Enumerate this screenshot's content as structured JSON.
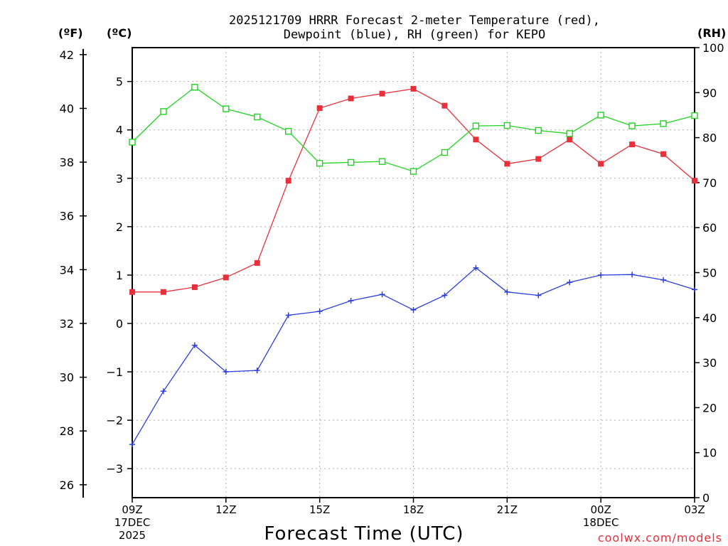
{
  "header": {
    "title_line1": "2025121709 HRRR Forecast 2-meter Temperature (red),",
    "title_line2": "Dewpoint (blue), RH (green) for KEPO",
    "unit_f": "(ºF)",
    "unit_c": "(ºC)",
    "unit_rh": "(RH)"
  },
  "footer": {
    "x_axis_title": "Forecast Time (UTC)",
    "credit": "coolwx.com/models"
  },
  "colors": {
    "temperature": "#e8303a",
    "dewpoint": "#2a3fe0",
    "rh": "#1ed41e"
  },
  "chart_data": {
    "type": "line",
    "x_hours": [
      0,
      1,
      2,
      3,
      4,
      5,
      6,
      7,
      8,
      9,
      10,
      11,
      12,
      13,
      14,
      15,
      16,
      17,
      18
    ],
    "x_ticks": [
      {
        "hour": 0,
        "lines": [
          "09Z",
          "17DEC",
          "2025"
        ]
      },
      {
        "hour": 3,
        "lines": [
          "12Z"
        ]
      },
      {
        "hour": 6,
        "lines": [
          "15Z"
        ]
      },
      {
        "hour": 9,
        "lines": [
          "18Z"
        ]
      },
      {
        "hour": 12,
        "lines": [
          "21Z"
        ]
      },
      {
        "hour": 15,
        "lines": [
          "00Z",
          "18DEC"
        ]
      },
      {
        "hour": 18,
        "lines": [
          "03Z"
        ]
      }
    ],
    "xlim": [
      0,
      18
    ],
    "ylim_c": [
      -3.6,
      5.7
    ],
    "ylim_rh": [
      0,
      100
    ],
    "yticks_c": [
      -3,
      -2,
      -1,
      0,
      1,
      2,
      3,
      4,
      5
    ],
    "yticks_f": [
      26,
      28,
      30,
      32,
      34,
      36,
      38,
      40,
      42
    ],
    "yticks_rh": [
      0,
      10,
      20,
      30,
      40,
      50,
      60,
      70,
      80,
      90,
      100
    ],
    "grid": true,
    "series": [
      {
        "name": "Temperature",
        "unit": "C",
        "marker": "filled-square",
        "values": [
          0.65,
          0.65,
          0.75,
          0.95,
          1.25,
          2.95,
          4.45,
          4.65,
          4.75,
          4.85,
          4.5,
          3.8,
          3.3,
          3.4,
          3.8,
          3.3,
          3.7,
          3.5,
          2.95
        ]
      },
      {
        "name": "Dewpoint",
        "unit": "C",
        "marker": "plus",
        "values": [
          -2.5,
          -1.4,
          -0.45,
          -1.0,
          -0.97,
          0.17,
          0.25,
          0.47,
          0.6,
          0.28,
          0.58,
          1.15,
          0.65,
          0.58,
          0.85,
          1.0,
          1.01,
          0.9,
          0.7
        ]
      },
      {
        "name": "RH",
        "unit": "%",
        "marker": "open-square",
        "values": [
          79,
          85.8,
          91.2,
          86.4,
          84.6,
          81.4,
          74.3,
          74.5,
          74.7,
          72.5,
          76.7,
          82.6,
          82.7,
          81.6,
          80.9,
          85,
          82.6,
          83.1,
          84.9
        ]
      }
    ]
  }
}
